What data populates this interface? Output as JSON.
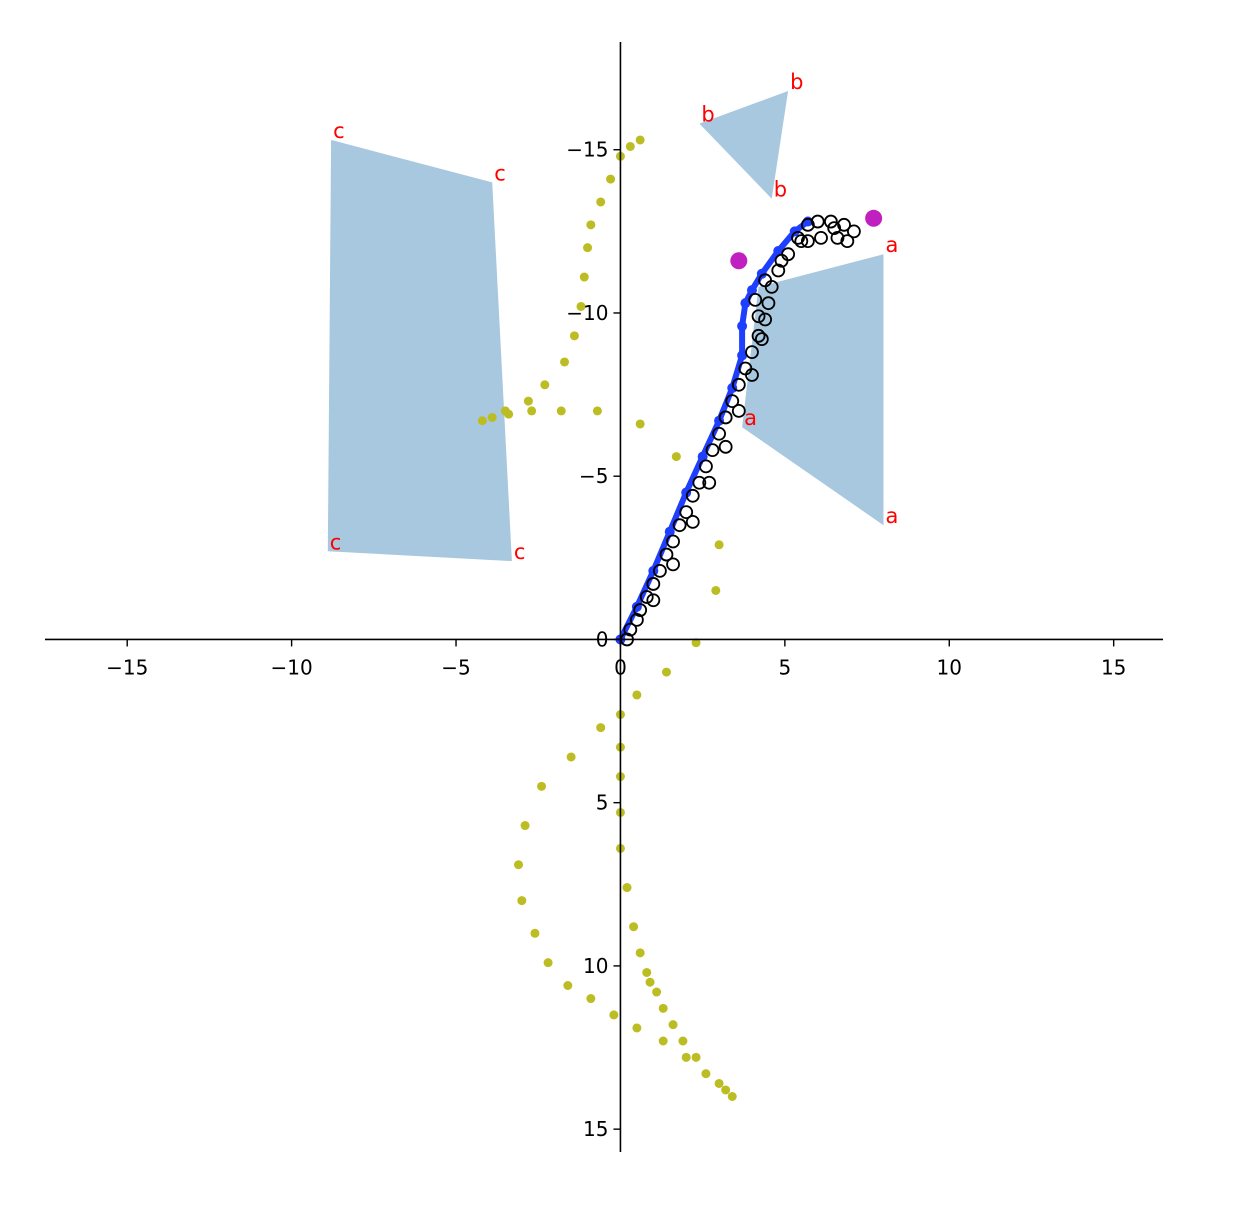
{
  "chart_data": {
    "type": "scatter",
    "title": "",
    "xlabel": "",
    "ylabel": "",
    "xlim": [
      -17.5,
      16.5
    ],
    "ylim": [
      -18.3,
      15.7
    ],
    "y_axis_inverted": true,
    "axes_through_origin": true,
    "grid": false,
    "legend": "none",
    "x_ticks": [
      -15,
      -10,
      -5,
      0,
      5,
      10,
      15
    ],
    "y_ticks": [
      -15,
      -10,
      -5,
      0,
      5,
      10,
      15
    ],
    "colors": {
      "polygon_fill": "#a8c8e0",
      "polygon_label": "#ff0000",
      "scatter_yellow": "#bcbd22",
      "path_blue": "#1f3fff",
      "path_black": "#000000",
      "markers_magenta": "#c020c0",
      "axes": "#000000"
    },
    "polygons": [
      {
        "label": "a",
        "vertices": [
          [
            3.7,
            -6.5
          ],
          [
            8.0,
            -3.5
          ],
          [
            8.0,
            -11.8
          ],
          [
            4.2,
            -10.8
          ]
        ],
        "label_points": [
          [
            8.0,
            -11.8
          ],
          [
            8.0,
            -3.5
          ],
          [
            3.7,
            -6.5
          ]
        ]
      },
      {
        "label": "b",
        "vertices": [
          [
            2.4,
            -15.8
          ],
          [
            5.1,
            -16.8
          ],
          [
            4.6,
            -13.5
          ]
        ],
        "label_points": [
          [
            5.1,
            -16.8
          ],
          [
            2.4,
            -15.8
          ],
          [
            4.6,
            -13.5
          ]
        ]
      },
      {
        "label": "c",
        "vertices": [
          [
            -8.8,
            -15.3
          ],
          [
            -3.9,
            -14.0
          ],
          [
            -3.3,
            -2.4
          ],
          [
            -8.9,
            -2.7
          ]
        ],
        "label_points": [
          [
            -8.8,
            -15.3
          ],
          [
            -3.9,
            -14.0
          ],
          [
            -3.3,
            -2.4
          ],
          [
            -8.9,
            -2.7
          ]
        ]
      }
    ],
    "series_yellow": {
      "marker": "dot",
      "points": [
        [
          0.6,
          -15.3
        ],
        [
          0.3,
          -15.1
        ],
        [
          0.0,
          -14.8
        ],
        [
          -0.3,
          -14.1
        ],
        [
          -0.6,
          -13.4
        ],
        [
          -0.9,
          -12.7
        ],
        [
          -1.0,
          -12.0
        ],
        [
          -1.1,
          -11.1
        ],
        [
          -1.2,
          -10.2
        ],
        [
          -1.4,
          -9.3
        ],
        [
          -1.7,
          -8.5
        ],
        [
          -2.3,
          -7.8
        ],
        [
          -2.8,
          -7.3
        ],
        [
          -3.5,
          -7.0
        ],
        [
          -3.4,
          -6.9
        ],
        [
          -3.9,
          -6.8
        ],
        [
          -4.2,
          -6.7
        ],
        [
          -2.7,
          -7.0
        ],
        [
          -1.8,
          -7.0
        ],
        [
          -0.7,
          -7.0
        ],
        [
          0.6,
          -6.6
        ],
        [
          1.7,
          -5.6
        ],
        [
          3.0,
          -2.9
        ],
        [
          2.9,
          -1.5
        ],
        [
          2.3,
          0.1
        ],
        [
          1.4,
          1.0
        ],
        [
          0.5,
          1.7
        ],
        [
          0.0,
          2.3
        ],
        [
          -0.6,
          2.7
        ],
        [
          0.0,
          3.3
        ],
        [
          -1.5,
          3.6
        ],
        [
          0.0,
          4.2
        ],
        [
          -2.4,
          4.5
        ],
        [
          0.0,
          5.3
        ],
        [
          -2.9,
          5.7
        ],
        [
          0.0,
          6.4
        ],
        [
          -3.1,
          6.9
        ],
        [
          0.2,
          7.6
        ],
        [
          -3.0,
          8.0
        ],
        [
          0.4,
          8.8
        ],
        [
          -2.6,
          9.0
        ],
        [
          0.6,
          9.6
        ],
        [
          -2.2,
          9.9
        ],
        [
          0.8,
          10.2
        ],
        [
          -1.6,
          10.6
        ],
        [
          0.9,
          10.5
        ],
        [
          -0.9,
          11.0
        ],
        [
          1.1,
          10.8
        ],
        [
          -0.2,
          11.5
        ],
        [
          1.3,
          11.3
        ],
        [
          0.5,
          11.9
        ],
        [
          1.6,
          11.8
        ],
        [
          1.3,
          12.3
        ],
        [
          1.9,
          12.3
        ],
        [
          2.0,
          12.8
        ],
        [
          2.3,
          12.8
        ],
        [
          2.6,
          13.3
        ],
        [
          3.0,
          13.6
        ],
        [
          3.2,
          13.8
        ],
        [
          3.4,
          14.0
        ]
      ]
    },
    "series_blue": {
      "marker": "line-with-circles",
      "points": [
        [
          0.0,
          0.0
        ],
        [
          0.5,
          -1.0
        ],
        [
          1.0,
          -2.1
        ],
        [
          1.5,
          -3.3
        ],
        [
          2.0,
          -4.5
        ],
        [
          2.5,
          -5.6
        ],
        [
          3.0,
          -6.7
        ],
        [
          3.4,
          -7.7
        ],
        [
          3.7,
          -8.7
        ],
        [
          3.7,
          -9.6
        ],
        [
          3.8,
          -10.3
        ],
        [
          4.0,
          -10.7
        ],
        [
          4.3,
          -11.2
        ],
        [
          4.8,
          -11.9
        ],
        [
          5.3,
          -12.5
        ],
        [
          5.7,
          -12.8
        ]
      ]
    },
    "series_black": {
      "marker": "open-circle",
      "points": [
        [
          0.2,
          0.0
        ],
        [
          0.3,
          -0.3
        ],
        [
          0.5,
          -0.6
        ],
        [
          0.6,
          -0.9
        ],
        [
          0.8,
          -1.3
        ],
        [
          1.0,
          -1.7
        ],
        [
          1.2,
          -2.1
        ],
        [
          1.4,
          -2.6
        ],
        [
          1.6,
          -3.0
        ],
        [
          1.8,
          -3.5
        ],
        [
          2.0,
          -3.9
        ],
        [
          2.2,
          -4.4
        ],
        [
          2.4,
          -4.8
        ],
        [
          2.6,
          -5.3
        ],
        [
          2.8,
          -5.8
        ],
        [
          3.0,
          -6.3
        ],
        [
          3.2,
          -6.8
        ],
        [
          3.4,
          -7.3
        ],
        [
          3.6,
          -7.8
        ],
        [
          3.8,
          -8.3
        ],
        [
          4.0,
          -8.8
        ],
        [
          4.2,
          -9.3
        ],
        [
          4.4,
          -9.8
        ],
        [
          4.5,
          -10.3
        ],
        [
          4.6,
          -10.8
        ],
        [
          4.8,
          -11.3
        ],
        [
          5.1,
          -11.8
        ],
        [
          5.4,
          -12.3
        ],
        [
          5.7,
          -12.7
        ],
        [
          6.0,
          -12.8
        ],
        [
          6.4,
          -12.8
        ],
        [
          6.8,
          -12.7
        ],
        [
          7.1,
          -12.5
        ],
        [
          6.6,
          -12.3
        ],
        [
          6.1,
          -12.3
        ],
        [
          5.7,
          -12.2
        ],
        [
          1.0,
          -1.2
        ],
        [
          1.6,
          -2.3
        ],
        [
          2.2,
          -3.6
        ],
        [
          2.7,
          -4.8
        ],
        [
          3.2,
          -5.9
        ],
        [
          3.6,
          -7.0
        ],
        [
          4.0,
          -8.1
        ],
        [
          4.3,
          -9.2
        ],
        [
          4.2,
          -9.9
        ],
        [
          4.1,
          -10.4
        ],
        [
          4.4,
          -11.0
        ],
        [
          4.9,
          -11.6
        ],
        [
          5.5,
          -12.2
        ],
        [
          6.5,
          -12.6
        ],
        [
          6.9,
          -12.2
        ]
      ]
    },
    "series_magenta": {
      "marker": "large-dot",
      "points": [
        [
          3.6,
          -11.6
        ],
        [
          7.7,
          -12.9
        ]
      ]
    }
  }
}
